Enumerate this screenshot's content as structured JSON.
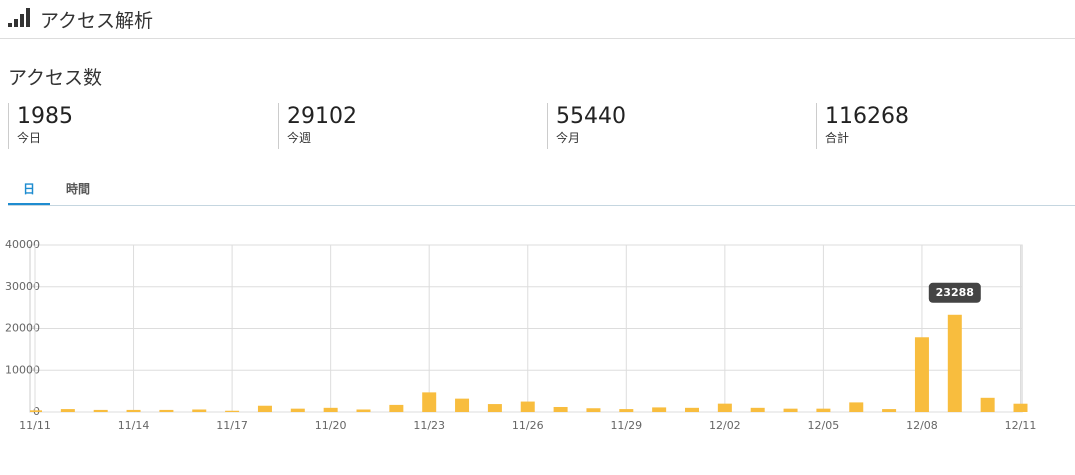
{
  "header": {
    "title": "アクセス解析"
  },
  "section_title": "アクセス数",
  "stats": [
    {
      "value": "1985",
      "label": "今日"
    },
    {
      "value": "29102",
      "label": "今週"
    },
    {
      "value": "55440",
      "label": "今月"
    },
    {
      "value": "116268",
      "label": "合計"
    }
  ],
  "tabs": [
    "日",
    "時間"
  ],
  "chart_data": {
    "type": "bar",
    "color": "#f8bd3e",
    "grid": true,
    "categories": [
      "11/11",
      null,
      null,
      "11/14",
      null,
      null,
      "11/17",
      null,
      null,
      "11/20",
      null,
      null,
      "11/23",
      null,
      null,
      "11/26",
      null,
      null,
      "11/29",
      null,
      null,
      "12/02",
      null,
      null,
      "12/05",
      null,
      null,
      "12/08",
      null,
      null,
      "12/11"
    ],
    "values": [
      400,
      700,
      500,
      500,
      500,
      600,
      300,
      1500,
      800,
      1000,
      600,
      1700,
      4700,
      3200,
      1900,
      2500,
      1200,
      900,
      700,
      1100,
      1000,
      2000,
      1000,
      800,
      800,
      2300,
      700,
      17900,
      23288,
      3400,
      1985
    ],
    "ylim": [
      0,
      40000
    ],
    "yticks": [
      0,
      10000,
      20000,
      30000,
      40000
    ],
    "tooltip_index": 28
  }
}
